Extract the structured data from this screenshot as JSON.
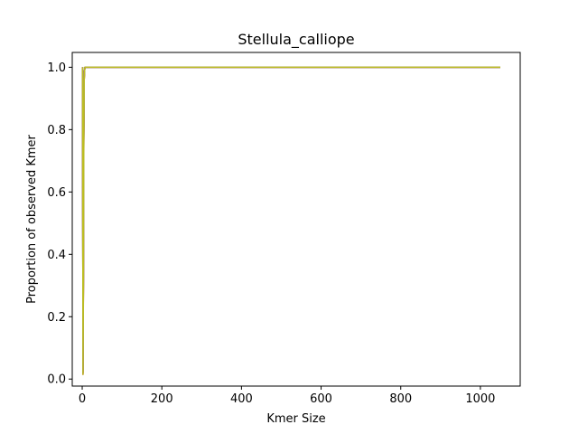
{
  "chart_data": {
    "type": "line",
    "title": "Stellula_calliope",
    "xlabel": "Kmer Size",
    "ylabel": "Proportion of observed Kmer",
    "xlim": [
      -25,
      1100
    ],
    "ylim": [
      -0.0225,
      1.0475
    ],
    "xticks": [
      0,
      200,
      400,
      600,
      800,
      1000
    ],
    "yticks": [
      0.0,
      0.2,
      0.4,
      0.6,
      0.8,
      1.0
    ],
    "xtick_labels": [
      "0",
      "200",
      "400",
      "600",
      "800",
      "1000"
    ],
    "ytick_labels": [
      "0.0",
      "0.2",
      "0.4",
      "0.6",
      "0.8",
      "1.0"
    ],
    "grid": false,
    "series": [
      {
        "color": "#1f77b4",
        "x": [
          1,
          2,
          3,
          4,
          5,
          6,
          7,
          8,
          9,
          10,
          15,
          20,
          30,
          50,
          100,
          200,
          400,
          600,
          800,
          1000,
          1050
        ],
        "y": [
          1.0,
          0.03,
          0.35,
          0.8,
          0.97,
          0.99,
          1.0,
          1.0,
          1.0,
          1.0,
          1.0,
          1.0,
          1.0,
          1.0,
          1.0,
          1.0,
          1.0,
          1.0,
          1.0,
          1.0,
          1.0
        ]
      },
      {
        "color": "#ff7f0e",
        "x": [
          1,
          2,
          3,
          4,
          5,
          6,
          7,
          8,
          9,
          10,
          15,
          20,
          30,
          50,
          100,
          200,
          400,
          600,
          800,
          1000,
          1050
        ],
        "y": [
          1.0,
          0.02,
          0.3,
          0.78,
          0.96,
          0.99,
          1.0,
          1.0,
          1.0,
          1.0,
          1.0,
          1.0,
          1.0,
          1.0,
          1.0,
          1.0,
          1.0,
          1.0,
          1.0,
          1.0,
          1.0
        ]
      },
      {
        "color": "#2ca02c",
        "x": [
          1,
          2,
          3,
          4,
          5,
          6,
          7,
          8,
          9,
          10,
          15,
          20,
          30,
          50,
          100,
          200,
          400,
          600,
          800,
          1000,
          1050
        ],
        "y": [
          1.0,
          0.025,
          0.33,
          0.79,
          0.97,
          0.99,
          1.0,
          1.0,
          1.0,
          1.0,
          1.0,
          1.0,
          1.0,
          1.0,
          1.0,
          1.0,
          1.0,
          1.0,
          1.0,
          1.0,
          1.0
        ]
      },
      {
        "color": "#d62728",
        "x": [
          1,
          2,
          3,
          4,
          5,
          6,
          7,
          8,
          9,
          10,
          15,
          20,
          30,
          50,
          100,
          200,
          400,
          600,
          800,
          1000,
          1050
        ],
        "y": [
          1.0,
          0.015,
          0.28,
          0.76,
          0.96,
          0.99,
          1.0,
          1.0,
          1.0,
          1.0,
          1.0,
          1.0,
          1.0,
          1.0,
          1.0,
          1.0,
          1.0,
          1.0,
          1.0,
          1.0,
          1.0
        ]
      },
      {
        "color": "#9467bd",
        "x": [
          1,
          2,
          3,
          4,
          5,
          6,
          7,
          8,
          9,
          10,
          15,
          20,
          30,
          50,
          100,
          200,
          400,
          600,
          800,
          1000,
          1050
        ],
        "y": [
          1.0,
          0.03,
          0.34,
          0.8,
          0.97,
          0.99,
          1.0,
          1.0,
          1.0,
          1.0,
          1.0,
          1.0,
          1.0,
          1.0,
          1.0,
          1.0,
          1.0,
          1.0,
          1.0,
          1.0,
          1.0
        ]
      },
      {
        "color": "#8c564b",
        "x": [
          1,
          2,
          3,
          4,
          5,
          6,
          7,
          8,
          9,
          10,
          15,
          20,
          30,
          50,
          100,
          200,
          400,
          600,
          800,
          1000,
          1050
        ],
        "y": [
          1.0,
          0.02,
          0.31,
          0.77,
          0.96,
          0.99,
          1.0,
          1.0,
          1.0,
          1.0,
          1.0,
          1.0,
          1.0,
          1.0,
          1.0,
          1.0,
          1.0,
          1.0,
          1.0,
          1.0,
          1.0
        ]
      },
      {
        "color": "#e377c2",
        "x": [
          1,
          2,
          3,
          4,
          5,
          6,
          7,
          8,
          9,
          10,
          15,
          20,
          30,
          50,
          100,
          200,
          400,
          600,
          800,
          1000,
          1050
        ],
        "y": [
          1.0,
          0.025,
          0.32,
          0.79,
          0.97,
          0.99,
          1.0,
          1.0,
          1.0,
          1.0,
          1.0,
          1.0,
          1.0,
          1.0,
          1.0,
          1.0,
          1.0,
          1.0,
          1.0,
          1.0,
          1.0
        ]
      },
      {
        "color": "#7f7f7f",
        "x": [
          1,
          2,
          3,
          4,
          5,
          6,
          7,
          8,
          9,
          10,
          15,
          20,
          30,
          50,
          100,
          200,
          400,
          600,
          800,
          1000,
          1050
        ],
        "y": [
          1.0,
          0.018,
          0.29,
          0.77,
          0.96,
          0.99,
          1.0,
          1.0,
          1.0,
          1.0,
          1.0,
          1.0,
          1.0,
          1.0,
          1.0,
          1.0,
          1.0,
          1.0,
          1.0,
          1.0,
          1.0
        ]
      },
      {
        "color": "#bcbd22",
        "x": [
          1,
          2,
          3,
          4,
          5,
          6,
          7,
          8,
          9,
          10,
          15,
          20,
          30,
          50,
          100,
          200,
          400,
          600,
          800,
          1000,
          1050
        ],
        "y": [
          1.0,
          0.015,
          0.3,
          0.78,
          0.96,
          0.99,
          1.0,
          1.0,
          1.0,
          1.0,
          1.0,
          1.0,
          1.0,
          1.0,
          1.0,
          1.0,
          1.0,
          1.0,
          1.0,
          1.0,
          1.0
        ]
      }
    ]
  }
}
